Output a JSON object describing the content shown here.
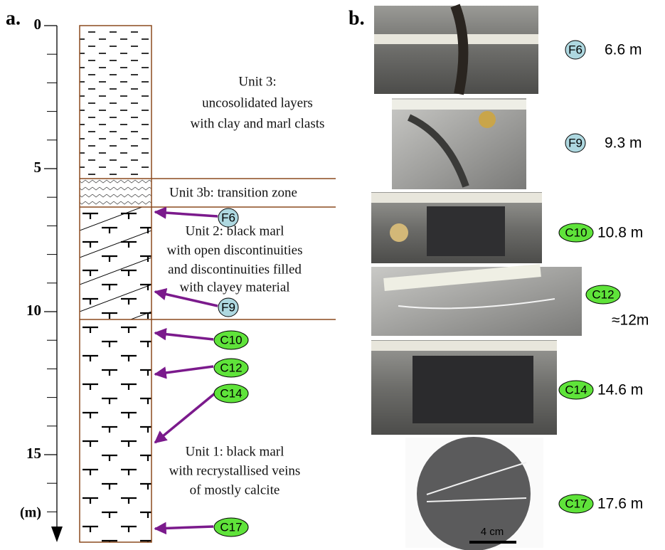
{
  "panel_a": {
    "label": "a.",
    "depth_axis": {
      "ticks": [
        0,
        5,
        10,
        15
      ],
      "unit": "(m)"
    },
    "units": [
      {
        "lines": [
          "Unit 3:",
          "uncosolidated layers",
          "with clay and marl clasts"
        ]
      },
      {
        "lines": [
          "Unit 3b: transition zone"
        ]
      },
      {
        "lines": [
          "Unit 2: black marl",
          "with open discontinuities",
          "and discontinuities filled",
          "with clayey material"
        ]
      },
      {
        "lines": [
          "Unit 1: black marl",
          "with recrystallised veins",
          "of mostly calcite"
        ]
      }
    ],
    "samples": [
      "F6",
      "F9",
      "C10",
      "C12",
      "C14",
      "C17"
    ]
  },
  "panel_b": {
    "label": "b.",
    "photos": [
      {
        "sample": "F6",
        "depth": "6.6 m"
      },
      {
        "sample": "F9",
        "depth": "9.3 m"
      },
      {
        "sample": "C10",
        "depth": "10.8 m"
      },
      {
        "sample": "C12",
        "depth": "≈12m"
      },
      {
        "sample": "C14",
        "depth": "14.6 m"
      },
      {
        "sample": "C17",
        "depth": "17.6 m"
      }
    ],
    "scale_bar": "4 cm"
  }
}
